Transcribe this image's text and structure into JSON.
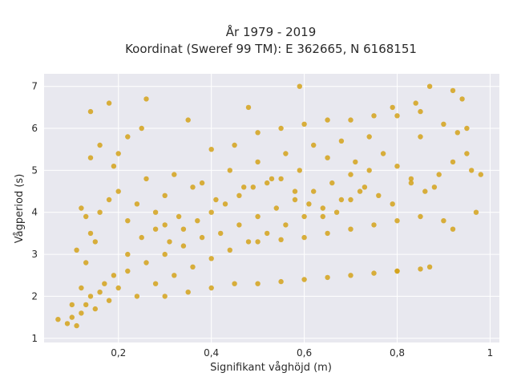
{
  "chart_data": {
    "type": "scatter",
    "title_line1": "År 1979 - 2019",
    "title_line2": "Koordinat (Sweref 99 TM): E 362665, N 6168151",
    "xlabel": "Signifikant våghöjd (m)",
    "ylabel": "Vågperiod (s)",
    "xlim": [
      0.04,
      1.02
    ],
    "ylim": [
      0.9,
      7.3
    ],
    "xticks": [
      0.2,
      0.4,
      0.6,
      0.8,
      1
    ],
    "xtick_labels": [
      "0,2",
      "0,4",
      "0,6",
      "0,8",
      "1"
    ],
    "yticks": [
      1,
      2,
      3,
      4,
      5,
      6,
      7
    ],
    "ytick_labels": [
      "1",
      "2",
      "3",
      "4",
      "5",
      "6",
      "7"
    ],
    "grid": true,
    "marker_color": "#d4a21a",
    "plot_background": "#e8e8ef",
    "series": [
      {
        "points": [
          [
            0.07,
            1.45
          ],
          [
            0.09,
            1.35
          ],
          [
            0.1,
            1.5
          ],
          [
            0.11,
            1.3
          ],
          [
            0.12,
            1.6
          ],
          [
            0.13,
            1.8
          ],
          [
            0.14,
            2.0
          ],
          [
            0.15,
            1.7
          ],
          [
            0.16,
            2.1
          ],
          [
            0.17,
            2.3
          ],
          [
            0.18,
            1.9
          ],
          [
            0.19,
            2.5
          ],
          [
            0.2,
            2.2
          ],
          [
            0.22,
            2.6
          ],
          [
            0.24,
            2.0
          ],
          [
            0.26,
            2.8
          ],
          [
            0.28,
            2.3
          ],
          [
            0.3,
            3.0
          ],
          [
            0.32,
            2.5
          ],
          [
            0.34,
            3.2
          ],
          [
            0.36,
            2.7
          ],
          [
            0.38,
            3.4
          ],
          [
            0.4,
            2.9
          ],
          [
            0.42,
            3.5
          ],
          [
            0.44,
            3.1
          ],
          [
            0.46,
            3.7
          ],
          [
            0.48,
            3.3
          ],
          [
            0.5,
            3.9
          ],
          [
            0.52,
            3.5
          ],
          [
            0.54,
            4.1
          ],
          [
            0.56,
            3.7
          ],
          [
            0.58,
            4.3
          ],
          [
            0.6,
            3.9
          ],
          [
            0.62,
            4.5
          ],
          [
            0.64,
            4.1
          ],
          [
            0.66,
            4.7
          ],
          [
            0.68,
            4.3
          ],
          [
            0.7,
            4.9
          ],
          [
            0.72,
            4.5
          ],
          [
            0.74,
            5.0
          ],
          [
            0.14,
            3.5
          ],
          [
            0.16,
            4.0
          ],
          [
            0.18,
            4.3
          ],
          [
            0.2,
            4.5
          ],
          [
            0.22,
            3.8
          ],
          [
            0.24,
            4.2
          ],
          [
            0.26,
            4.8
          ],
          [
            0.28,
            4.0
          ],
          [
            0.3,
            4.4
          ],
          [
            0.32,
            4.9
          ],
          [
            0.2,
            5.4
          ],
          [
            0.22,
            5.8
          ],
          [
            0.25,
            6.0
          ],
          [
            0.18,
            6.6
          ],
          [
            0.26,
            6.7
          ],
          [
            0.14,
            6.4
          ],
          [
            0.35,
            6.2
          ],
          [
            0.48,
            6.5
          ],
          [
            0.59,
            7.0
          ],
          [
            0.87,
            7.0
          ],
          [
            0.92,
            6.9
          ],
          [
            0.94,
            6.7
          ],
          [
            0.96,
            5.0
          ],
          [
            0.97,
            4.0
          ],
          [
            0.92,
            3.6
          ],
          [
            0.87,
            2.7
          ],
          [
            0.8,
            2.6
          ],
          [
            0.9,
            3.8
          ],
          [
            0.84,
            6.6
          ],
          [
            0.79,
            6.5
          ],
          [
            0.3,
            2.0
          ],
          [
            0.35,
            2.1
          ],
          [
            0.4,
            2.2
          ],
          [
            0.45,
            2.3
          ],
          [
            0.5,
            2.3
          ],
          [
            0.55,
            2.35
          ],
          [
            0.6,
            2.4
          ],
          [
            0.65,
            2.45
          ],
          [
            0.7,
            2.5
          ],
          [
            0.75,
            2.55
          ],
          [
            0.8,
            2.6
          ],
          [
            0.85,
            2.65
          ],
          [
            0.5,
            3.3
          ],
          [
            0.55,
            3.35
          ],
          [
            0.6,
            3.4
          ],
          [
            0.65,
            3.5
          ],
          [
            0.7,
            3.6
          ],
          [
            0.75,
            3.7
          ],
          [
            0.8,
            3.8
          ],
          [
            0.85,
            3.9
          ],
          [
            0.4,
            5.5
          ],
          [
            0.45,
            5.6
          ],
          [
            0.5,
            5.9
          ],
          [
            0.55,
            6.0
          ],
          [
            0.6,
            6.1
          ],
          [
            0.65,
            6.2
          ],
          [
            0.7,
            6.2
          ],
          [
            0.75,
            6.3
          ],
          [
            0.8,
            6.3
          ],
          [
            0.85,
            6.4
          ],
          [
            0.1,
            1.8
          ],
          [
            0.12,
            2.2
          ],
          [
            0.13,
            2.8
          ],
          [
            0.11,
            3.1
          ],
          [
            0.15,
            3.3
          ],
          [
            0.13,
            3.9
          ],
          [
            0.12,
            4.1
          ],
          [
            0.14,
            5.3
          ],
          [
            0.16,
            5.6
          ],
          [
            0.19,
            5.1
          ],
          [
            0.3,
            3.7
          ],
          [
            0.33,
            3.9
          ],
          [
            0.36,
            4.6
          ],
          [
            0.38,
            4.7
          ],
          [
            0.41,
            4.3
          ],
          [
            0.44,
            5.0
          ],
          [
            0.47,
            4.6
          ],
          [
            0.5,
            5.2
          ],
          [
            0.53,
            4.8
          ],
          [
            0.56,
            5.4
          ],
          [
            0.59,
            5.0
          ],
          [
            0.62,
            5.6
          ],
          [
            0.65,
            5.3
          ],
          [
            0.68,
            5.7
          ],
          [
            0.71,
            5.2
          ],
          [
            0.74,
            5.8
          ],
          [
            0.77,
            5.4
          ],
          [
            0.8,
            5.1
          ],
          [
            0.83,
            4.8
          ],
          [
            0.86,
            4.5
          ],
          [
            0.89,
            4.9
          ],
          [
            0.92,
            5.2
          ],
          [
            0.95,
            5.4
          ],
          [
            0.98,
            4.9
          ],
          [
            0.88,
            4.6
          ],
          [
            0.83,
            4.7
          ],
          [
            0.85,
            5.8
          ],
          [
            0.9,
            6.1
          ],
          [
            0.93,
            5.9
          ],
          [
            0.95,
            6.0
          ],
          [
            0.22,
            3.0
          ],
          [
            0.25,
            3.4
          ],
          [
            0.28,
            3.6
          ],
          [
            0.31,
            3.3
          ],
          [
            0.34,
            3.6
          ],
          [
            0.37,
            3.8
          ],
          [
            0.4,
            4.0
          ],
          [
            0.43,
            4.2
          ],
          [
            0.46,
            4.4
          ],
          [
            0.49,
            4.6
          ],
          [
            0.52,
            4.7
          ],
          [
            0.55,
            4.8
          ],
          [
            0.58,
            4.5
          ],
          [
            0.61,
            4.2
          ],
          [
            0.64,
            3.9
          ],
          [
            0.67,
            4.0
          ],
          [
            0.7,
            4.3
          ],
          [
            0.73,
            4.6
          ],
          [
            0.76,
            4.4
          ],
          [
            0.79,
            4.2
          ]
        ]
      }
    ]
  }
}
